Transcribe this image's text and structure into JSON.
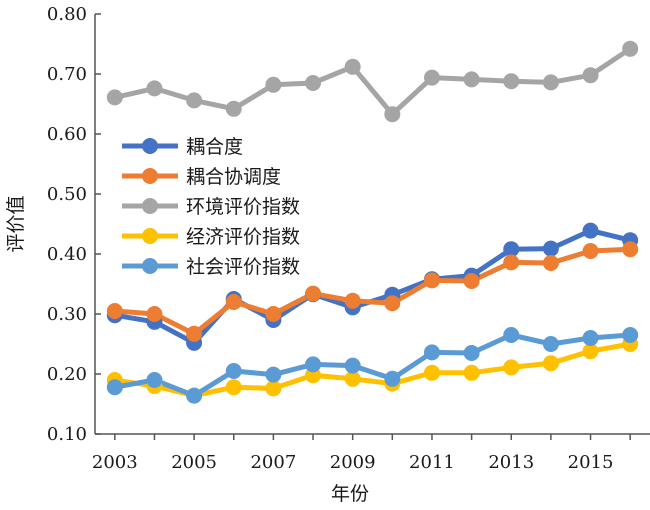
{
  "chart_data": {
    "type": "line",
    "title": "",
    "xlabel": "年份",
    "ylabel": "评价值",
    "ylim": [
      0.1,
      0.8
    ],
    "yticks": [
      "0.10",
      "0.20",
      "0.30",
      "0.40",
      "0.50",
      "0.60",
      "0.70",
      "0.80"
    ],
    "xlim": [
      2002.5,
      2016.5
    ],
    "xticks": [
      "2003",
      "2005",
      "2007",
      "2009",
      "2011",
      "2013",
      "2015"
    ],
    "x": [
      2003,
      2004,
      2005,
      2006,
      2007,
      2008,
      2009,
      2010,
      2011,
      2012,
      2013,
      2014,
      2015,
      2016
    ],
    "grid": false,
    "legend_position": "left-middle",
    "series": [
      {
        "name": "耦合度",
        "color": "#4472C4",
        "values": [
          0.298,
          0.287,
          0.252,
          0.325,
          0.29,
          0.333,
          0.311,
          0.332,
          0.358,
          0.364,
          0.408,
          0.409,
          0.439,
          0.423
        ]
      },
      {
        "name": "耦合协调度",
        "color": "#ED7D31",
        "values": [
          0.305,
          0.3,
          0.267,
          0.32,
          0.3,
          0.334,
          0.322,
          0.318,
          0.356,
          0.355,
          0.386,
          0.385,
          0.405,
          0.408
        ]
      },
      {
        "name": "环境评价指数",
        "color": "#A5A5A5",
        "values": [
          0.661,
          0.676,
          0.656,
          0.642,
          0.682,
          0.685,
          0.712,
          0.633,
          0.694,
          0.691,
          0.688,
          0.686,
          0.698,
          0.742
        ]
      },
      {
        "name": "经济评价指数",
        "color": "#FFC000",
        "values": [
          0.19,
          0.18,
          0.164,
          0.178,
          0.176,
          0.198,
          0.192,
          0.184,
          0.202,
          0.202,
          0.211,
          0.218,
          0.238,
          0.25
        ]
      },
      {
        "name": "社会评价指数",
        "color": "#5B9BD5",
        "values": [
          0.178,
          0.19,
          0.164,
          0.205,
          0.199,
          0.216,
          0.214,
          0.192,
          0.236,
          0.235,
          0.265,
          0.25,
          0.26,
          0.265
        ]
      }
    ]
  }
}
